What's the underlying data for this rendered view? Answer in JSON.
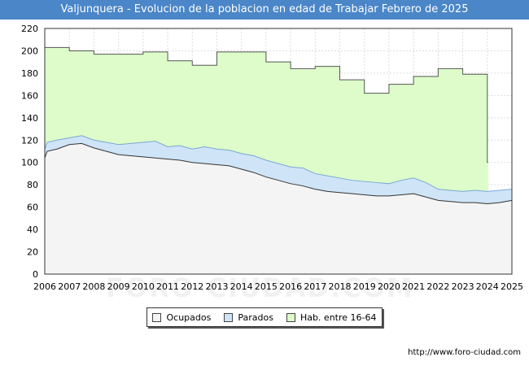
{
  "title": "Valjunquera - Evolucion de la poblacion en edad de Trabajar Febrero de 2025",
  "source_url": "http://www.foro-ciudad.com",
  "watermark": "FORO-CIUDAD.COM",
  "colors": {
    "title_bg": "#4a86c8",
    "hab_fill": "#ddfcc9",
    "hab_line": "#555555",
    "parados_fill": "#cfe5f7",
    "parados_line": "#7aa6d6",
    "ocupados_fill": "#f4f4f4",
    "ocupados_line": "#333333",
    "grid": "#dddddd"
  },
  "chart_data": {
    "type": "area",
    "title": "Valjunquera - Evolucion de la poblacion en edad de Trabajar Febrero de 2025",
    "xlabel": "",
    "ylabel": "",
    "xlim": [
      2006,
      2025
    ],
    "ylim": [
      0,
      220
    ],
    "x_ticks": [
      "2006",
      "2007",
      "2008",
      "2009",
      "2010",
      "2011",
      "2012",
      "2013",
      "2014",
      "2015",
      "2016",
      "2017",
      "2018",
      "2019",
      "2020",
      "2021",
      "2022",
      "2023",
      "2024",
      "2025"
    ],
    "y_ticks": [
      0,
      20,
      40,
      60,
      80,
      100,
      120,
      140,
      160,
      180,
      200,
      220
    ],
    "grid": true,
    "legend": [
      "Ocupados",
      "Parados",
      "Hab. entre 16-64"
    ],
    "series": [
      {
        "name": "Hab. entre 16-64",
        "step": true,
        "x": [
          2006,
          2007,
          2008,
          2009,
          2010,
          2011,
          2012,
          2013,
          2014,
          2015,
          2016,
          2017,
          2018,
          2019,
          2020,
          2021,
          2022,
          2023,
          2024
        ],
        "values": [
          203,
          200,
          197,
          197,
          199,
          191,
          187,
          199,
          199,
          190,
          184,
          186,
          174,
          162,
          170,
          177,
          184,
          179,
          100
        ]
      },
      {
        "name": "Parados",
        "x": [
          2006,
          2006.1,
          2006.5,
          2007,
          2007.5,
          2008,
          2008.5,
          2009,
          2009.5,
          2010,
          2010.5,
          2011,
          2011.5,
          2012,
          2012.5,
          2013,
          2013.5,
          2014,
          2014.5,
          2015,
          2015.5,
          2016,
          2016.5,
          2017,
          2017.5,
          2018,
          2018.5,
          2019,
          2019.5,
          2020,
          2020.5,
          2021,
          2021.5,
          2022,
          2022.5,
          2023,
          2023.5,
          2024,
          2024.5,
          2025
        ],
        "values": [
          112,
          118,
          120,
          122,
          124,
          120,
          118,
          116,
          117,
          118,
          119,
          114,
          115,
          112,
          114,
          112,
          111,
          108,
          106,
          102,
          99,
          96,
          95,
          90,
          88,
          86,
          84,
          83,
          82,
          81,
          84,
          86,
          82,
          76,
          75,
          74,
          75,
          74,
          75,
          76
        ]
      },
      {
        "name": "Ocupados",
        "x": [
          2006,
          2006.1,
          2006.5,
          2007,
          2007.5,
          2008,
          2008.5,
          2009,
          2009.5,
          2010,
          2010.5,
          2011,
          2011.5,
          2012,
          2012.5,
          2013,
          2013.5,
          2014,
          2014.5,
          2015,
          2015.5,
          2016,
          2016.5,
          2017,
          2017.5,
          2018,
          2018.5,
          2019,
          2019.5,
          2020,
          2020.5,
          2021,
          2021.5,
          2022,
          2022.5,
          2023,
          2023.5,
          2024,
          2024.5,
          2025
        ],
        "values": [
          104,
          110,
          112,
          116,
          117,
          113,
          110,
          107,
          106,
          105,
          104,
          103,
          102,
          100,
          99,
          98,
          97,
          94,
          91,
          87,
          84,
          81,
          79,
          76,
          74,
          73,
          72,
          71,
          70,
          70,
          71,
          72,
          69,
          66,
          65,
          64,
          64,
          63,
          64,
          66
        ]
      }
    ]
  }
}
